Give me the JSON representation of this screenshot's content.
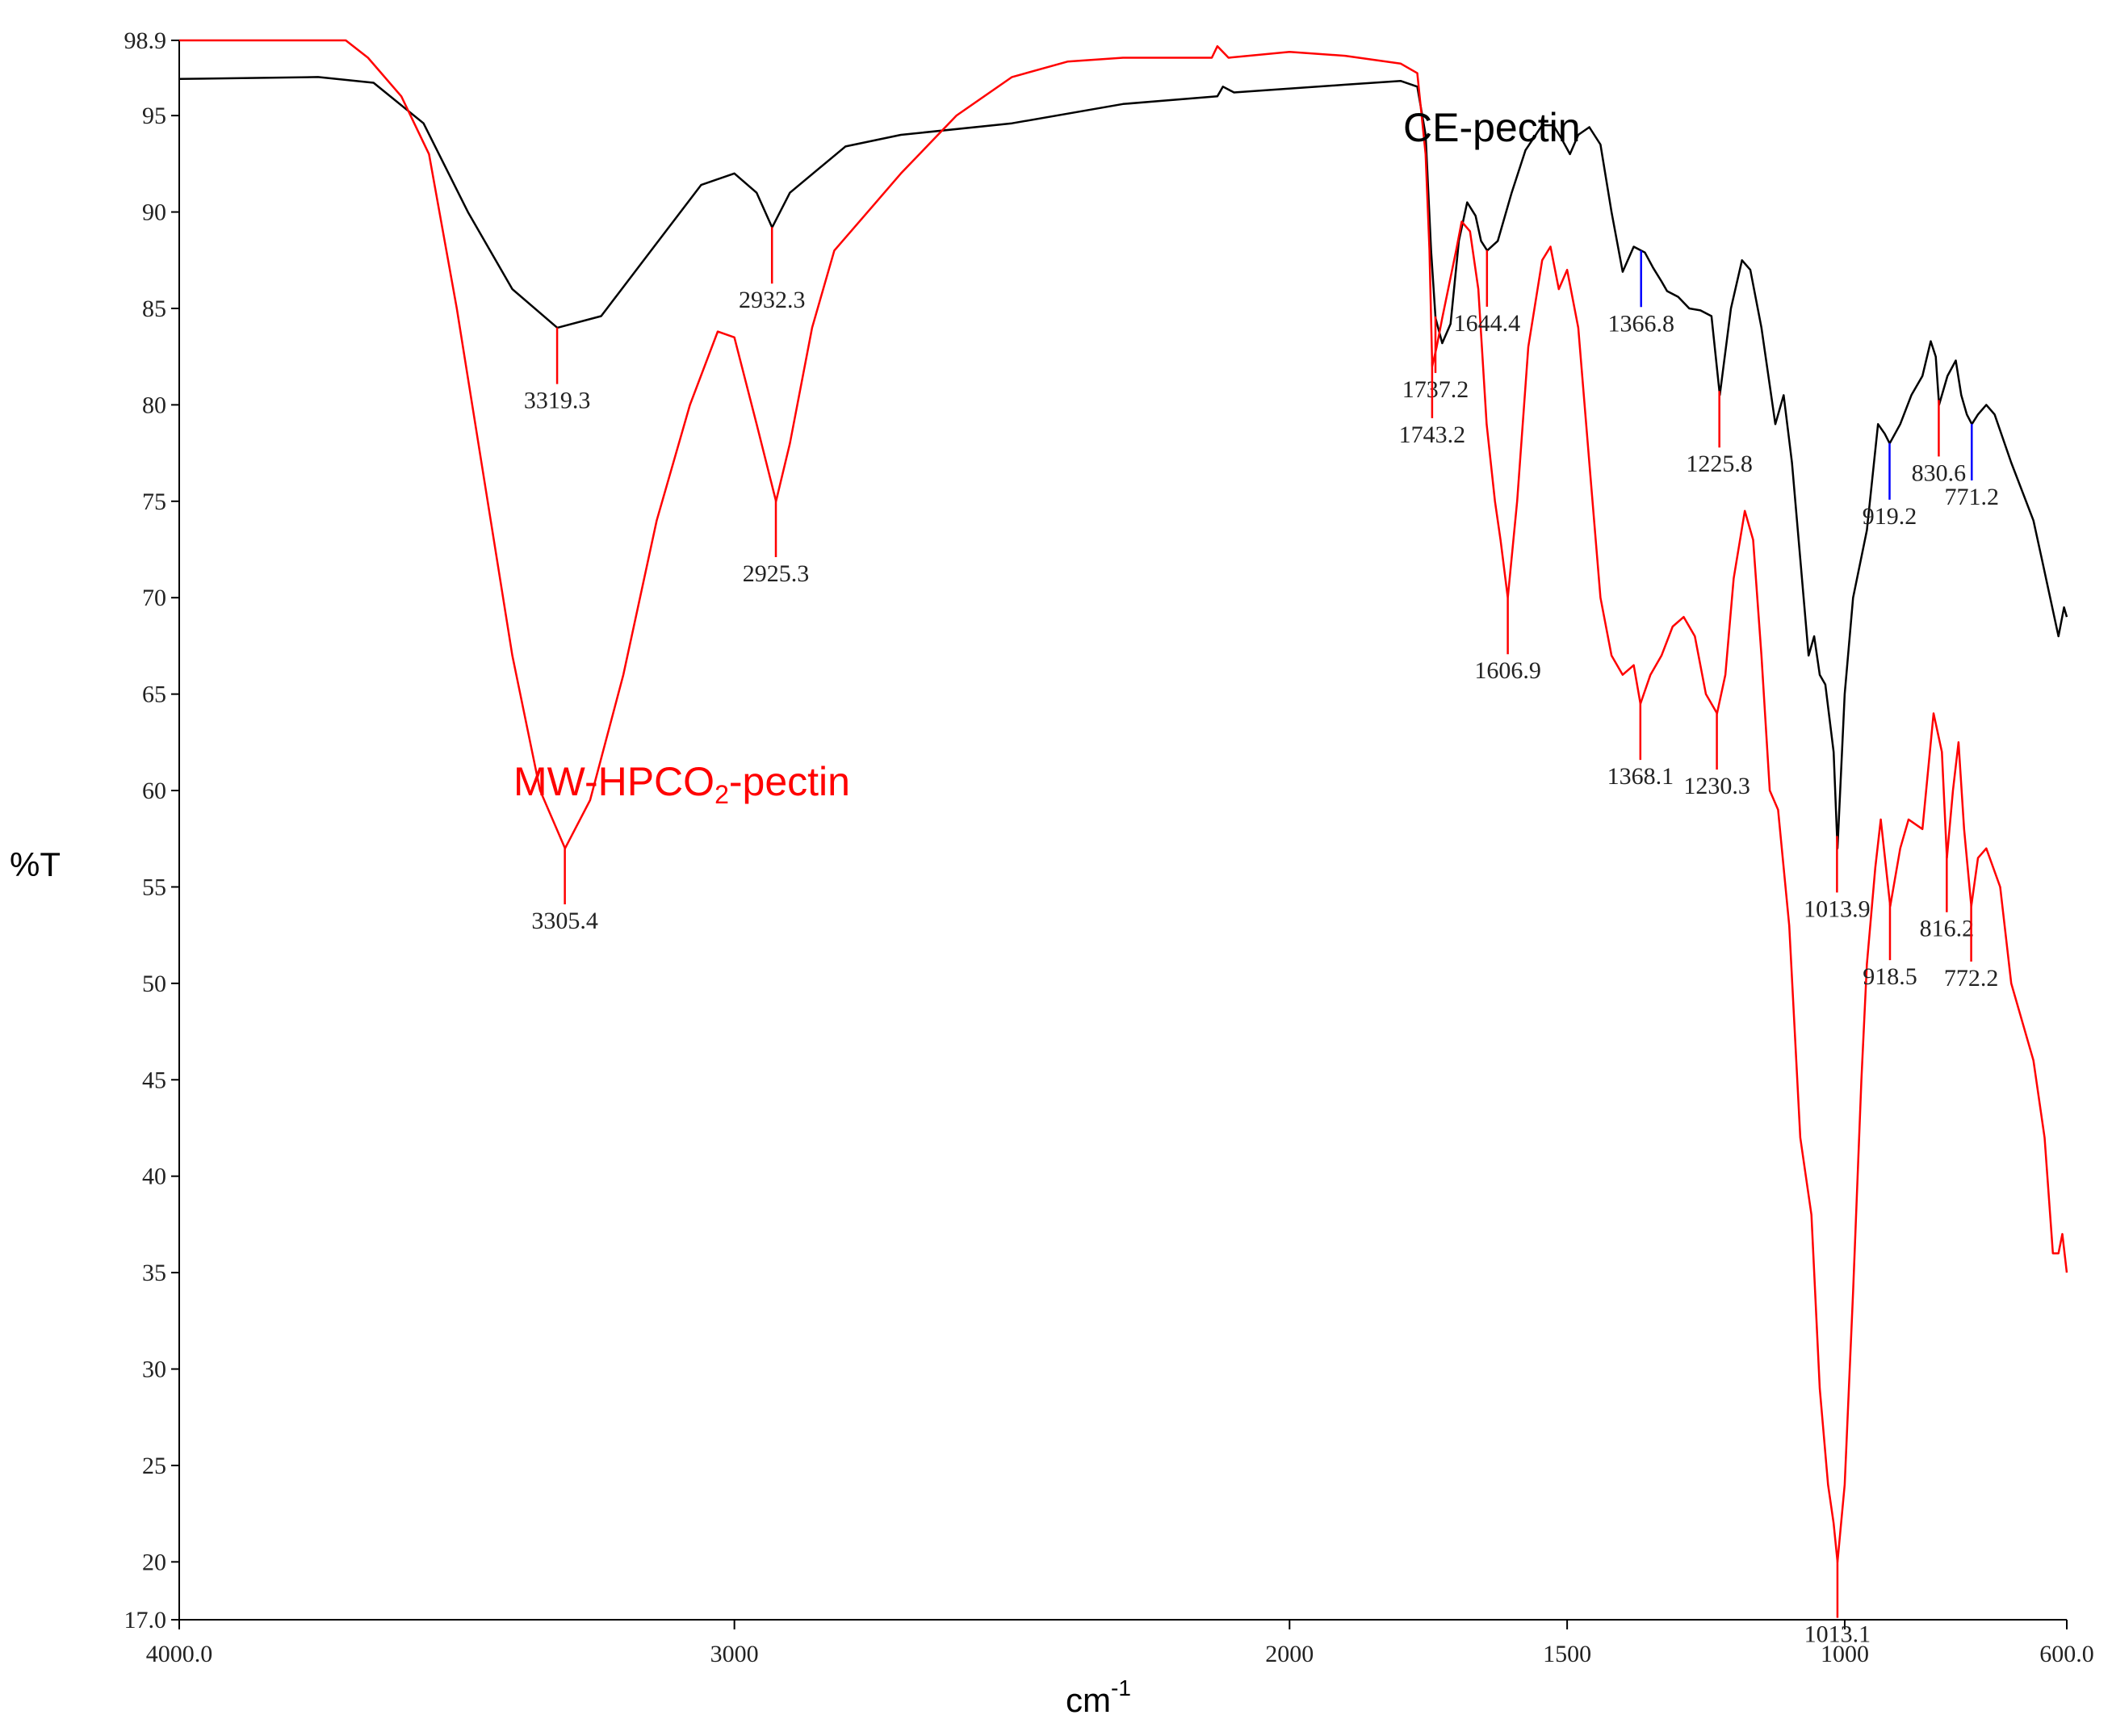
{
  "chart_data": {
    "type": "line",
    "xlabel_base": "cm",
    "xlabel_exp": "-1",
    "ylabel": "%T",
    "xlim": [
      4000,
      600
    ],
    "ylim": [
      17.0,
      98.9
    ],
    "x_ticks": [
      {
        "value": 4000,
        "label": "4000.0"
      },
      {
        "value": 3000,
        "label": "3000"
      },
      {
        "value": 2000,
        "label": "2000"
      },
      {
        "value": 1500,
        "label": "1500"
      },
      {
        "value": 1000,
        "label": "1000"
      },
      {
        "value": 600,
        "label": "600.0"
      }
    ],
    "y_ticks": [
      {
        "value": 98.9,
        "label": "98.9"
      },
      {
        "value": 95,
        "label": "95"
      },
      {
        "value": 90,
        "label": "90"
      },
      {
        "value": 85,
        "label": "85"
      },
      {
        "value": 80,
        "label": "80"
      },
      {
        "value": 75,
        "label": "75"
      },
      {
        "value": 70,
        "label": "70"
      },
      {
        "value": 65,
        "label": "65"
      },
      {
        "value": 60,
        "label": "60"
      },
      {
        "value": 55,
        "label": "55"
      },
      {
        "value": 50,
        "label": "50"
      },
      {
        "value": 45,
        "label": "45"
      },
      {
        "value": 40,
        "label": "40"
      },
      {
        "value": 35,
        "label": "35"
      },
      {
        "value": 30,
        "label": "30"
      },
      {
        "value": 25,
        "label": "25"
      },
      {
        "value": 20,
        "label": "20"
      },
      {
        "value": 17.0,
        "label": "17.0"
      }
    ],
    "series": [
      {
        "name": "CE-pectin",
        "color": "#000000",
        "points": [
          [
            4000,
            96.9
          ],
          [
            3750,
            97.0
          ],
          [
            3650,
            96.7
          ],
          [
            3560,
            94.6
          ],
          [
            3480,
            90.0
          ],
          [
            3400,
            86.0
          ],
          [
            3319,
            84.0
          ],
          [
            3240,
            84.6
          ],
          [
            3150,
            88.0
          ],
          [
            3060,
            91.4
          ],
          [
            3000,
            92.0
          ],
          [
            2960,
            91.0
          ],
          [
            2932,
            89.2
          ],
          [
            2900,
            91.0
          ],
          [
            2800,
            93.4
          ],
          [
            2700,
            94.0
          ],
          [
            2500,
            94.6
          ],
          [
            2300,
            95.6
          ],
          [
            2130,
            96.0
          ],
          [
            2120,
            96.5
          ],
          [
            2100,
            96.2
          ],
          [
            1900,
            96.6
          ],
          [
            1800,
            96.8
          ],
          [
            1770,
            96.5
          ],
          [
            1755,
            94.0
          ],
          [
            1745,
            88.0
          ],
          [
            1737,
            84.5
          ],
          [
            1725,
            83.2
          ],
          [
            1710,
            84.2
          ],
          [
            1695,
            88.5
          ],
          [
            1680,
            90.5
          ],
          [
            1665,
            89.8
          ],
          [
            1655,
            88.5
          ],
          [
            1644,
            88.0
          ],
          [
            1625,
            88.5
          ],
          [
            1600,
            91.0
          ],
          [
            1575,
            93.2
          ],
          [
            1545,
            94.5
          ],
          [
            1525,
            94.5
          ],
          [
            1510,
            93.8
          ],
          [
            1495,
            93.0
          ],
          [
            1480,
            94.0
          ],
          [
            1460,
            94.4
          ],
          [
            1440,
            93.5
          ],
          [
            1420,
            90.0
          ],
          [
            1400,
            86.9
          ],
          [
            1380,
            88.2
          ],
          [
            1360,
            87.9
          ],
          [
            1345,
            87.1
          ],
          [
            1330,
            86.4
          ],
          [
            1320,
            85.9
          ],
          [
            1300,
            85.6
          ],
          [
            1280,
            85.0
          ],
          [
            1260,
            84.9
          ],
          [
            1240,
            84.6
          ],
          [
            1225,
            80.5
          ],
          [
            1205,
            85.0
          ],
          [
            1185,
            87.5
          ],
          [
            1170,
            87.0
          ],
          [
            1150,
            84.0
          ],
          [
            1125,
            79.0
          ],
          [
            1110,
            80.5
          ],
          [
            1095,
            77.0
          ],
          [
            1080,
            72.0
          ],
          [
            1065,
            67.0
          ],
          [
            1055,
            68.0
          ],
          [
            1045,
            66.0
          ],
          [
            1035,
            65.5
          ],
          [
            1020,
            62.0
          ],
          [
            1013,
            57.0
          ],
          [
            1000,
            65.0
          ],
          [
            985,
            70.0
          ],
          [
            960,
            73.5
          ],
          [
            940,
            79.0
          ],
          [
            928,
            78.5
          ],
          [
            919,
            78.0
          ],
          [
            900,
            79.0
          ],
          [
            880,
            80.5
          ],
          [
            860,
            81.5
          ],
          [
            845,
            83.3
          ],
          [
            836,
            82.5
          ],
          [
            830,
            80.0
          ],
          [
            815,
            81.5
          ],
          [
            800,
            82.3
          ],
          [
            790,
            80.5
          ],
          [
            780,
            79.5
          ],
          [
            771,
            79.0
          ],
          [
            760,
            79.5
          ],
          [
            745,
            80.0
          ],
          [
            730,
            79.5
          ],
          [
            700,
            77.0
          ],
          [
            680,
            75.5
          ],
          [
            660,
            74.0
          ],
          [
            645,
            72.0
          ],
          [
            630,
            70.0
          ],
          [
            615,
            68.0
          ],
          [
            605,
            69.5
          ],
          [
            600,
            69.0
          ]
        ]
      },
      {
        "name": "MW-HPCO2-pectin",
        "name_main": "MW-HPCO",
        "name_sub": "2",
        "name_tail": "-pectin",
        "color": "#ff0000",
        "points": [
          [
            4000,
            98.9
          ],
          [
            3700,
            98.9
          ],
          [
            3660,
            98.0
          ],
          [
            3600,
            96.0
          ],
          [
            3550,
            93.0
          ],
          [
            3500,
            85.0
          ],
          [
            3450,
            76.0
          ],
          [
            3400,
            67.0
          ],
          [
            3350,
            60.0
          ],
          [
            3305,
            57.0
          ],
          [
            3260,
            59.5
          ],
          [
            3200,
            66.0
          ],
          [
            3140,
            74.0
          ],
          [
            3080,
            80.0
          ],
          [
            3030,
            83.8
          ],
          [
            3000,
            83.5
          ],
          [
            2960,
            79.0
          ],
          [
            2925,
            75.0
          ],
          [
            2900,
            78.0
          ],
          [
            2860,
            84.0
          ],
          [
            2820,
            88.0
          ],
          [
            2760,
            90.0
          ],
          [
            2700,
            92.0
          ],
          [
            2600,
            95.0
          ],
          [
            2500,
            97.0
          ],
          [
            2400,
            97.8
          ],
          [
            2300,
            98.0
          ],
          [
            2140,
            98.0
          ],
          [
            2130,
            98.6
          ],
          [
            2110,
            98.0
          ],
          [
            2000,
            98.3
          ],
          [
            1900,
            98.1
          ],
          [
            1800,
            97.7
          ],
          [
            1770,
            97.2
          ],
          [
            1755,
            93.0
          ],
          [
            1748,
            88.0
          ],
          [
            1743,
            82.0
          ],
          [
            1735,
            83.0
          ],
          [
            1725,
            84.5
          ],
          [
            1700,
            88.0
          ],
          [
            1690,
            89.5
          ],
          [
            1675,
            89.0
          ],
          [
            1660,
            86.0
          ],
          [
            1645,
            79.0
          ],
          [
            1630,
            75.0
          ],
          [
            1620,
            73.0
          ],
          [
            1606.9,
            70.0
          ],
          [
            1590,
            75.0
          ],
          [
            1570,
            83.0
          ],
          [
            1545,
            87.5
          ],
          [
            1530,
            88.2
          ],
          [
            1515,
            86.0
          ],
          [
            1500,
            87.0
          ],
          [
            1480,
            84.0
          ],
          [
            1460,
            77.0
          ],
          [
            1440,
            70.0
          ],
          [
            1420,
            67.0
          ],
          [
            1400,
            66.0
          ],
          [
            1380,
            66.5
          ],
          [
            1368,
            64.5
          ],
          [
            1350,
            66.0
          ],
          [
            1330,
            67.0
          ],
          [
            1310,
            68.5
          ],
          [
            1290,
            69.0
          ],
          [
            1270,
            68.0
          ],
          [
            1250,
            65.0
          ],
          [
            1230,
            64.0
          ],
          [
            1215,
            66.0
          ],
          [
            1200,
            71.0
          ],
          [
            1180,
            74.5
          ],
          [
            1165,
            73.0
          ],
          [
            1150,
            67.0
          ],
          [
            1135,
            60.0
          ],
          [
            1120,
            59.0
          ],
          [
            1100,
            53.0
          ],
          [
            1080,
            42.0
          ],
          [
            1060,
            38.0
          ],
          [
            1045,
            29.0
          ],
          [
            1030,
            24.0
          ],
          [
            1020,
            22.0
          ],
          [
            1013,
            20.0
          ],
          [
            1000,
            24.0
          ],
          [
            985,
            34.0
          ],
          [
            970,
            45.0
          ],
          [
            960,
            51.0
          ],
          [
            945,
            56.0
          ],
          [
            935,
            58.5
          ],
          [
            918,
            54.0
          ],
          [
            900,
            57.0
          ],
          [
            885,
            58.5
          ],
          [
            860,
            58.0
          ],
          [
            840,
            64.0
          ],
          [
            825,
            62.0
          ],
          [
            816,
            56.5
          ],
          [
            805,
            60.0
          ],
          [
            795,
            62.5
          ],
          [
            785,
            58.0
          ],
          [
            772,
            54.0
          ],
          [
            760,
            56.5
          ],
          [
            745,
            57.0
          ],
          [
            720,
            55.0
          ],
          [
            700,
            50.0
          ],
          [
            660,
            46.0
          ],
          [
            640,
            42.0
          ],
          [
            625,
            36.0
          ],
          [
            615,
            36.0
          ],
          [
            608,
            37.0
          ],
          [
            600,
            35.0
          ]
        ]
      }
    ],
    "peak_annotations": [
      {
        "label": "3319.3",
        "x": 3319.3,
        "curve": "black",
        "marker_color": "#ff0000"
      },
      {
        "label": "2932.3",
        "x": 2932.3,
        "curve": "black",
        "marker_color": "#ff0000"
      },
      {
        "label": "1737.2",
        "x": 1737.2,
        "curve": "black",
        "marker_color": "#ff0000"
      },
      {
        "label": "1644.4",
        "x": 1644.4,
        "curve": "black",
        "marker_color": "#ff0000"
      },
      {
        "label": "1366.8",
        "x": 1366.8,
        "curve": "black",
        "marker_color": "#0000ff"
      },
      {
        "label": "1225.8",
        "x": 1225.8,
        "curve": "black",
        "marker_color": "#ff0000"
      },
      {
        "label": "1013.9",
        "x": 1013.9,
        "curve": "black",
        "marker_color": "#ff0000"
      },
      {
        "label": "919.2",
        "x": 919.2,
        "curve": "black",
        "marker_color": "#0000ff"
      },
      {
        "label": "830.6",
        "x": 830.6,
        "curve": "black",
        "marker_color": "#ff0000"
      },
      {
        "label": "771.2",
        "x": 771.2,
        "curve": "black",
        "marker_color": "#0000ff"
      },
      {
        "label": "3305.4",
        "x": 3305.4,
        "curve": "red",
        "marker_color": "#ff0000"
      },
      {
        "label": "2925.3",
        "x": 2925.3,
        "curve": "red",
        "marker_color": "#ff0000"
      },
      {
        "label": "1743.2",
        "x": 1743.2,
        "curve": "red",
        "marker_color": "#ff0000"
      },
      {
        "label": "1606.9",
        "x": 1606.9,
        "curve": "red",
        "marker_color": "#ff0000"
      },
      {
        "label": "1368.1",
        "x": 1368.1,
        "curve": "red",
        "marker_color": "#ff0000"
      },
      {
        "label": "1230.3",
        "x": 1230.3,
        "curve": "red",
        "marker_color": "#ff0000"
      },
      {
        "label": "1013.1",
        "x": 1013.1,
        "curve": "red",
        "marker_color": "#ff0000"
      },
      {
        "label": "918.5",
        "x": 918.5,
        "curve": "red",
        "marker_color": "#ff0000"
      },
      {
        "label": "816.2",
        "x": 816.2,
        "curve": "red",
        "marker_color": "#ff0000"
      },
      {
        "label": "772.2",
        "x": 772.2,
        "curve": "red",
        "marker_color": "#ff0000"
      }
    ],
    "grid": false,
    "legend": "inline labels"
  }
}
